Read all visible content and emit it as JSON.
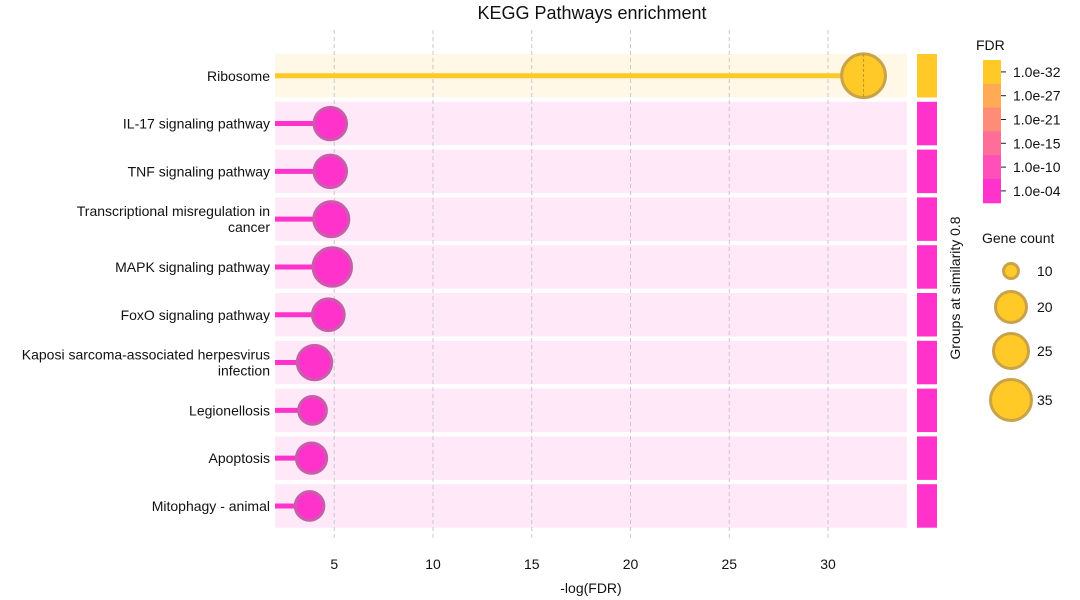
{
  "chart_data": {
    "type": "lollipop",
    "title": "KEGG Pathways enrichment",
    "xlabel": "-log(FDR)",
    "xlim": [
      2,
      34
    ],
    "xticks": [
      5,
      10,
      15,
      20,
      25,
      30
    ],
    "grid": "vertical dashed",
    "side_label": "Groups at similarity 0.8",
    "categories": [
      "Ribosome",
      "IL-17 signaling pathway",
      "TNF signaling pathway",
      "Transcriptional misregulation in cancer",
      "MAPK signaling pathway",
      "FoxO signaling pathway",
      "Kaposi sarcoma-associated herpesvirus infection",
      "Legionellosis",
      "Apoptosis",
      "Mitophagy - animal"
    ],
    "values": [
      31.8,
      4.8,
      4.8,
      4.85,
      4.9,
      4.7,
      4.0,
      3.9,
      3.85,
      3.75
    ],
    "gene_counts": [
      35,
      14,
      14,
      18,
      24,
      13,
      17,
      8,
      11,
      9
    ],
    "group_colors": [
      "#ffc928",
      "#ff33cc",
      "#ff33cc",
      "#ff33cc",
      "#ff33cc",
      "#ff33cc",
      "#ff33cc",
      "#ff33cc",
      "#ff33cc",
      "#ff33cc"
    ],
    "row_bg_colors": [
      "#fff8e6",
      "#ffe8f8",
      "#ffe8f8",
      "#ffe8f8",
      "#ffe8f8",
      "#ffe8f8",
      "#ffe8f8",
      "#ffe8f8",
      "#ffe8f8",
      "#ffe8f8"
    ],
    "fdr_legend": {
      "title": "FDR",
      "labels": [
        "1.0e-32",
        "1.0e-27",
        "1.0e-21",
        "1.0e-15",
        "1.0e-10",
        "1.0e-04"
      ],
      "colors": [
        "#ffc928",
        "#ffab55",
        "#ff8c78",
        "#ff6e99",
        "#ff4fb8",
        "#ff33cc"
      ]
    },
    "size_legend": {
      "title": "Gene count",
      "values": [
        10,
        20,
        25,
        35
      ],
      "labels": [
        "10",
        "20",
        "25",
        "35"
      ]
    }
  }
}
